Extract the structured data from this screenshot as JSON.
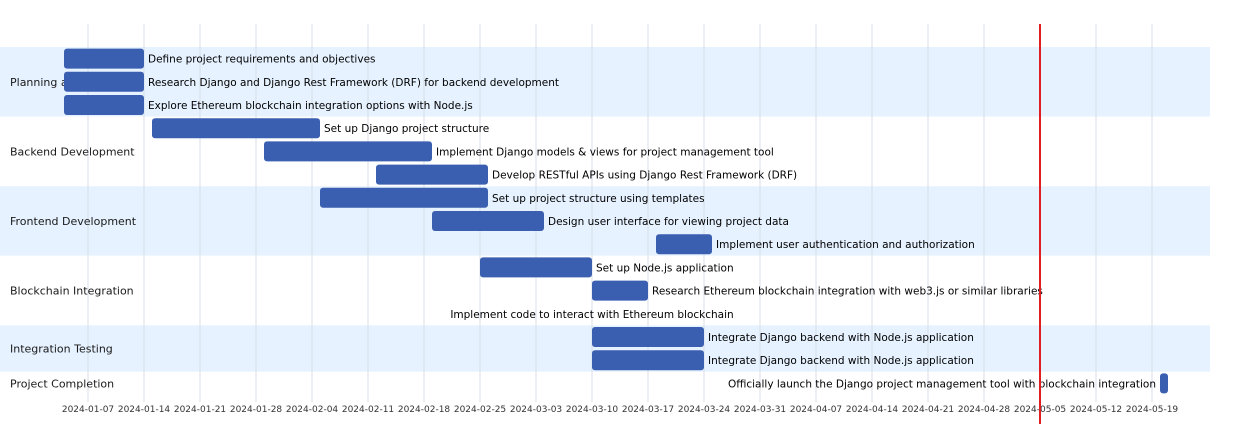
{
  "chart_data": {
    "type": "gantt",
    "x_range": [
      "2024-01-01",
      "2024-05-24"
    ],
    "ticks": [
      "2024-01-07",
      "2024-01-14",
      "2024-01-21",
      "2024-01-28",
      "2024-02-04",
      "2024-02-11",
      "2024-02-18",
      "2024-02-25",
      "2024-03-03",
      "2024-03-10",
      "2024-03-17",
      "2024-03-24",
      "2024-03-31",
      "2024-04-07",
      "2024-04-14",
      "2024-04-21",
      "2024-04-28",
      "2024-05-05",
      "2024-05-12",
      "2024-05-19"
    ],
    "today": "2024-05-05",
    "sections": [
      {
        "name": "Planning and Research",
        "tasks": [
          {
            "name": "Define project requirements and objectives",
            "start": "2024-01-04",
            "end": "2024-01-14"
          },
          {
            "name": "Research Django and Django Rest Framework (DRF) for backend development",
            "start": "2024-01-04",
            "end": "2024-01-14"
          },
          {
            "name": "Explore Ethereum blockchain integration options with Node.js",
            "start": "2024-01-04",
            "end": "2024-01-14"
          }
        ]
      },
      {
        "name": "Backend Development",
        "tasks": [
          {
            "name": "Set up Django project structure",
            "start": "2024-01-15",
            "end": "2024-02-05"
          },
          {
            "name": "Implement Django models & views for project management tool",
            "start": "2024-01-29",
            "end": "2024-02-19"
          },
          {
            "name": "Develop RESTful APIs using Django Rest Framework (DRF)",
            "start": "2024-02-12",
            "end": "2024-02-26"
          }
        ]
      },
      {
        "name": "Frontend Development",
        "tasks": [
          {
            "name": "Set up project structure using templates",
            "start": "2024-02-05",
            "end": "2024-02-26"
          },
          {
            "name": "Design user interface for viewing project data",
            "start": "2024-02-19",
            "end": "2024-03-04"
          },
          {
            "name": "Implement user authentication and authorization",
            "start": "2024-03-18",
            "end": "2024-03-25"
          }
        ]
      },
      {
        "name": "Blockchain Integration",
        "tasks": [
          {
            "name": "Set up Node.js application",
            "start": "2024-02-25",
            "end": "2024-03-10"
          },
          {
            "name": "Research Ethereum blockchain integration with web3.js or similar libraries",
            "start": "2024-03-10",
            "end": "2024-03-17"
          },
          {
            "name": "Implement code to interact with Ethereum blockchain",
            "start": "2024-03-10",
            "end": "2024-03-10"
          }
        ]
      },
      {
        "name": "Integration Testing",
        "tasks": [
          {
            "name": "Integrate Django backend with Node.js application",
            "start": "2024-03-10",
            "end": "2024-03-24"
          },
          {
            "name": "Integrate Django backend with Node.js application",
            "start": "2024-03-10",
            "end": "2024-03-24"
          }
        ]
      },
      {
        "name": "Project Completion",
        "tasks": [
          {
            "name": "Officially launch the Django project management tool with blockchain integration",
            "start": "2024-05-20",
            "end": "2024-05-21"
          }
        ]
      }
    ],
    "colors": {
      "bar": "#3a5eb0",
      "band_alt": "#e6f2ff",
      "grid": "#d7dde5",
      "today_line": "#e02020"
    }
  }
}
